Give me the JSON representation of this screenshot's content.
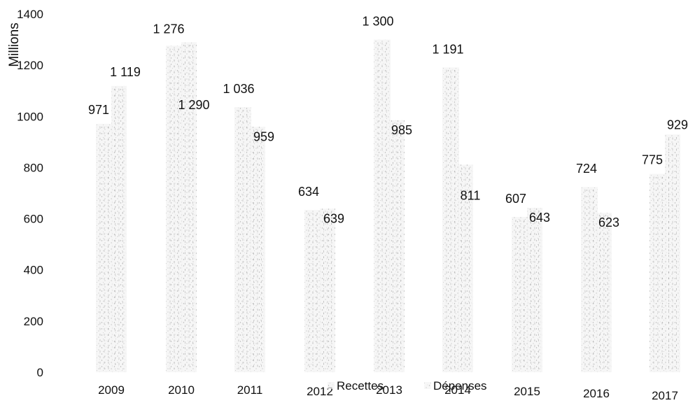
{
  "chart_data": {
    "type": "bar",
    "ylabel": "Millions",
    "xlabel": "",
    "ylim": [
      0,
      1400
    ],
    "yticks": [
      0,
      200,
      400,
      600,
      800,
      1000,
      1200,
      1400
    ],
    "categories": [
      "2009",
      "2010",
      "2011",
      "2012",
      "2013",
      "2014",
      "2015",
      "2016",
      "2017"
    ],
    "value_labels": {
      "recettes": [
        "971",
        "1 276",
        "1 036",
        "634",
        "1 300",
        "1 191",
        "607",
        "724",
        "775"
      ],
      "depenses": [
        "1 119",
        "1 290",
        "959",
        "639",
        "985",
        "811",
        "643",
        "623",
        "929"
      ]
    },
    "series": [
      {
        "name": "Recettes",
        "values": [
          971,
          1276,
          1036,
          634,
          1300,
          1191,
          607,
          724,
          775
        ]
      },
      {
        "name": "Dépenses",
        "values": [
          1119,
          1290,
          959,
          639,
          985,
          811,
          643,
          623,
          929
        ]
      }
    ],
    "legend": {
      "placement": "bottom-center",
      "items": [
        "Recettes",
        "Dépenses"
      ]
    },
    "grid": false,
    "colors": {
      "bar_fill": "#f3f3f3",
      "bar_speckle": "#9a9a9a",
      "bar_line": "#7a7a7a",
      "text": "#111111"
    }
  }
}
